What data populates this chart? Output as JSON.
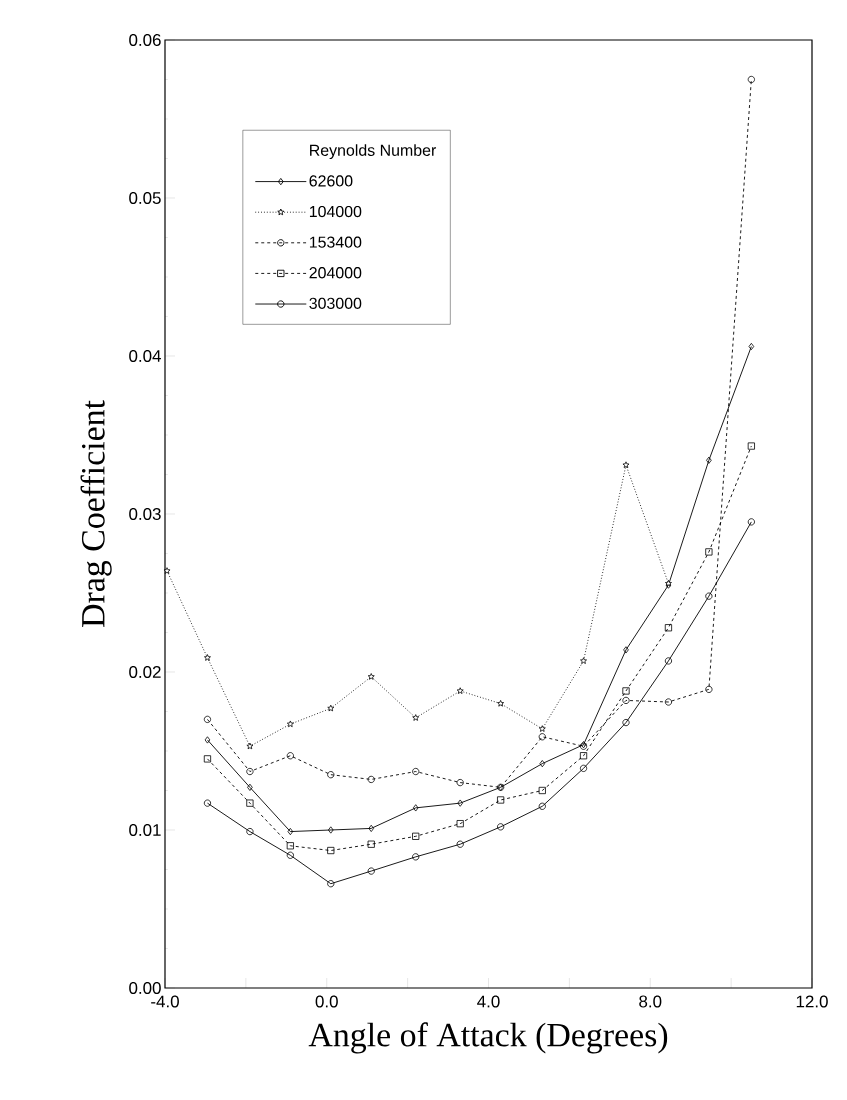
{
  "chart_data": {
    "type": "line",
    "xlabel": "Angle of Attack (Degrees)",
    "ylabel": "Drag Coefficient",
    "legend_title": "Reynolds Number",
    "legend": "top left",
    "grid": false,
    "xlim": [
      -4,
      12
    ],
    "ylim": [
      0,
      0.06
    ],
    "xticks": [
      {
        "value": -4,
        "label": "-4.0"
      },
      {
        "value": -2,
        "label": null
      },
      {
        "value": 0,
        "label": "0.0"
      },
      {
        "value": 2,
        "label": null
      },
      {
        "value": 4,
        "label": "4.0"
      },
      {
        "value": 6,
        "label": null
      },
      {
        "value": 8,
        "label": "8.0"
      },
      {
        "value": 10,
        "label": null
      },
      {
        "value": 12,
        "label": "12.0"
      }
    ],
    "yticks": [
      {
        "value": 0,
        "label": "0.00"
      },
      {
        "value": 0.01,
        "label": "0.01"
      },
      {
        "value": 0.02,
        "label": "0.02"
      },
      {
        "value": 0.03,
        "label": "0.03"
      },
      {
        "value": 0.04,
        "label": "0.04"
      },
      {
        "value": 0.05,
        "label": "0.05"
      },
      {
        "value": 0.06,
        "label": "0.06"
      }
    ],
    "series": [
      {
        "name": "62600",
        "color": "#000000",
        "marker": "diamond",
        "line_style": "solid",
        "x": [
          -2.95,
          -1.9,
          -0.9,
          0.1,
          1.1,
          2.2,
          3.3,
          4.3,
          5.33,
          6.35,
          7.4,
          8.45,
          9.45,
          10.5
        ],
        "values": [
          0.0157,
          0.0127,
          0.0099,
          0.01,
          0.0101,
          0.0114,
          0.0117,
          0.0127,
          0.0142,
          0.0154,
          0.0214,
          0.0255,
          0.0334,
          0.0406
        ]
      },
      {
        "name": "104000",
        "color": "#000000",
        "marker": "star",
        "line_style": "dotted",
        "x": [
          -3.95,
          -2.95,
          -1.9,
          -0.9,
          0.1,
          1.1,
          2.2,
          3.3,
          4.3,
          5.33,
          6.35,
          7.4,
          8.45
        ],
        "values": [
          0.0264,
          0.0209,
          0.0153,
          0.0167,
          0.0177,
          0.0197,
          0.0171,
          0.0188,
          0.018,
          0.0164,
          0.0207,
          0.0331,
          0.0256
        ]
      },
      {
        "name": "153400",
        "color": "#000000",
        "marker": "circle",
        "line_style": "dashed",
        "x": [
          -2.95,
          -1.9,
          -0.9,
          0.1,
          1.1,
          2.2,
          3.3,
          4.3,
          5.33,
          6.35,
          7.4,
          8.45,
          9.45,
          10.5
        ],
        "values": [
          0.017,
          0.0137,
          0.0147,
          0.0135,
          0.0132,
          0.0137,
          0.013,
          0.0127,
          0.0159,
          0.0153,
          0.0182,
          0.0181,
          0.0189,
          0.0575
        ]
      },
      {
        "name": "204000",
        "color": "#000000",
        "marker": "square",
        "line_style": "dashed",
        "x": [
          -2.95,
          -1.9,
          -0.9,
          0.1,
          1.1,
          2.2,
          3.3,
          4.3,
          5.33,
          6.35,
          7.4,
          8.45,
          9.45,
          10.5
        ],
        "values": [
          0.0145,
          0.0117,
          0.009,
          0.0087,
          0.0091,
          0.0096,
          0.0104,
          0.0119,
          0.0125,
          0.0147,
          0.0188,
          0.0228,
          0.0276,
          0.0343
        ]
      },
      {
        "name": "303000",
        "color": "#000000",
        "marker": "circle",
        "line_style": "solid",
        "x": [
          -2.95,
          -1.9,
          -0.9,
          0.1,
          1.1,
          2.2,
          3.3,
          4.3,
          5.33,
          6.35,
          7.4,
          8.45,
          9.45,
          10.5
        ],
        "values": [
          0.0117,
          0.0099,
          0.0084,
          0.0066,
          0.0074,
          0.0083,
          0.0091,
          0.0102,
          0.0115,
          0.0139,
          0.0168,
          0.0207,
          0.0248,
          0.0295
        ]
      }
    ]
  }
}
